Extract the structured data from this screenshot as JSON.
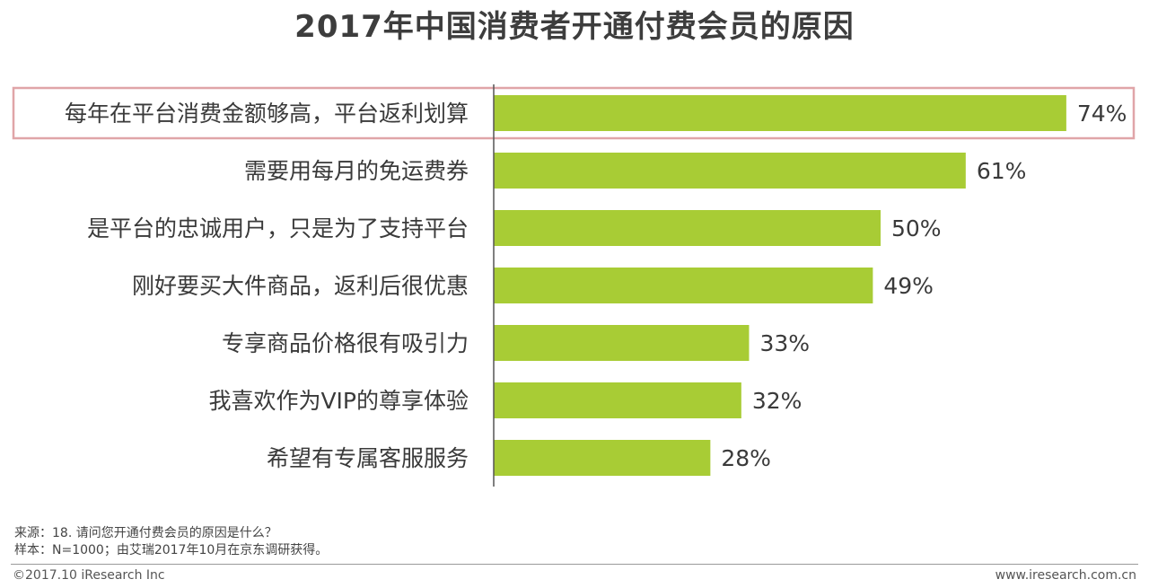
{
  "chart_data": {
    "type": "bar",
    "orientation": "horizontal",
    "title": "2017年中国消费者开通付费会员的原因",
    "categories": [
      "每年在平台消费金额够高，平台返利划算",
      "需要用每月的免运费券",
      "是平台的忠诚用户，只是为了支持平台",
      "刚好要买大件商品，返利后很优惠",
      "专享商品价格很有吸引力",
      "我喜欢作为VIP的尊享体验",
      "希望有专属客服服务"
    ],
    "values": [
      74,
      61,
      50,
      49,
      33,
      32,
      28
    ],
    "value_labels": [
      "74%",
      "61%",
      "50%",
      "49%",
      "33%",
      "32%",
      "28%"
    ],
    "unit": "%",
    "xlim": [
      0,
      100
    ],
    "highlighted_category": "每年在平台消费金额够高，平台返利划算",
    "colors": {
      "bar": "#a8cc35",
      "highlight_border": "#e0a5a8",
      "axis": "#555555"
    }
  },
  "footer": {
    "source": "来源：18. 请问您开通付费会员的原因是什么？",
    "sample": "样本：N=1000；由艾瑞2017年10月在京东调研获得。",
    "copyright": "©2017.10 iResearch Inc",
    "website": "www.iresearch.com.cn"
  }
}
